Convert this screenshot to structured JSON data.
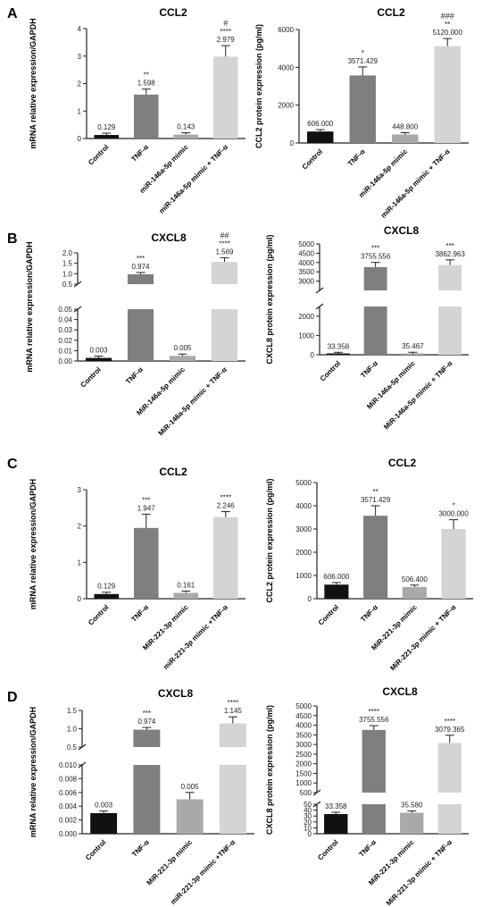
{
  "panel_letters": [
    "A",
    "B",
    "C",
    "D"
  ],
  "colors": {
    "control": "#111111",
    "tnf": "#7f7f7f",
    "mimic": "#a9a9a9",
    "combo": "#d4d4d4",
    "axis": "#222222"
  },
  "chart_data": [
    {
      "id": "A-left",
      "type": "bar",
      "title": "CCL2",
      "ylabel": "mRNA relative expression/GAPDH",
      "categories": [
        "Control",
        "TNF-α",
        "miR-146a-5p mimic",
        "miR-146a-5p mimic + TNF-α"
      ],
      "values": [
        0.129,
        1.598,
        0.143,
        2.979
      ],
      "errors": [
        0.05,
        0.2,
        0.04,
        0.4
      ],
      "value_labels": [
        "0.129",
        "1.598",
        "0.143",
        "2.979"
      ],
      "significance": [
        "",
        "**",
        "",
        "****"
      ],
      "extra_marks": [
        "",
        "",
        "",
        "#"
      ],
      "ylim": [
        0,
        4
      ],
      "yticks": [
        "0",
        "1",
        "2",
        "3",
        "4"
      ]
    },
    {
      "id": "A-right",
      "type": "bar",
      "title": "CCL2",
      "ylabel": "CCL2 protein expression (pg/ml)",
      "categories": [
        "Control",
        "TNF-α",
        "miR-146a-5p mimic",
        "miR-146a-5p mimic + TNF-α"
      ],
      "values": [
        606.0,
        3571.429,
        448.8,
        5120.0
      ],
      "errors": [
        100,
        450,
        80,
        400
      ],
      "value_labels": [
        "606.000",
        "3571.429",
        "448.800",
        "5120.000"
      ],
      "significance": [
        "",
        "*",
        "",
        "**"
      ],
      "extra_marks": [
        "",
        "",
        "",
        "###"
      ],
      "ylim": [
        0,
        6000
      ],
      "yticks": [
        "0",
        "2000",
        "4000",
        "6000"
      ]
    },
    {
      "id": "B-left",
      "type": "bar",
      "title": "CXCL8",
      "ylabel": "mRNA relative expression/GAPDH",
      "categories": [
        "Control",
        "TNF-α",
        "MiR-146a-5p mimic",
        "MiR-146a-5p mimic + TNF-α"
      ],
      "values": [
        0.003,
        0.974,
        0.005,
        1.569
      ],
      "errors": [
        0.001,
        0.07,
        0.0015,
        0.2
      ],
      "value_labels": [
        "0.003",
        "0.974",
        "0.005",
        "1.569"
      ],
      "significance": [
        "",
        "***",
        "",
        "****"
      ],
      "extra_marks": [
        "",
        "",
        "",
        "##"
      ],
      "axis_break": {
        "lower": [
          0,
          0.05
        ],
        "upper": [
          0.5,
          2.0
        ]
      },
      "yticks_lower": [
        "0.00",
        "0.01",
        "0.02",
        "0.03",
        "0.04",
        "0.05"
      ],
      "yticks_upper": [
        "0.5",
        "1.0",
        "1.5",
        "2.0"
      ]
    },
    {
      "id": "B-right",
      "type": "bar",
      "title": "CXCL8",
      "ylabel": "CXCL8 protein expression (pg/ml)",
      "categories": [
        "Control",
        "TNF-α",
        "MiR-146a-5p mimic",
        "MiR-146a-5p mimic + TNF-α"
      ],
      "values": [
        33.358,
        3755.556,
        35.467,
        3862.963
      ],
      "errors": [
        5,
        250,
        5,
        280
      ],
      "value_labels": [
        "33.358",
        "3755.556",
        "35.467",
        "3862.963"
      ],
      "significance": [
        "",
        "***",
        "",
        "***"
      ],
      "extra_marks": [
        "",
        "",
        "",
        ""
      ],
      "axis_break": {
        "lower": [
          0,
          2500
        ],
        "upper": [
          2500,
          5000
        ]
      },
      "yticks_lower": [
        "0",
        "1000",
        "2000"
      ],
      "yticks_upper": [
        "3000",
        "3500",
        "4000",
        "4500",
        "5000"
      ]
    },
    {
      "id": "C-left",
      "type": "bar",
      "title": "CCL2",
      "ylabel": "mRNA relative expression/GAPDH",
      "categories": [
        "Control",
        "TNF-α",
        "MiR-221-3p mimic",
        "miR-221-3p mimic +TNF-α"
      ],
      "values": [
        0.129,
        1.947,
        0.161,
        2.246
      ],
      "errors": [
        0.05,
        0.38,
        0.04,
        0.15
      ],
      "value_labels": [
        "0.129",
        "1.947",
        "0.161",
        "2.246"
      ],
      "significance": [
        "",
        "***",
        "",
        "****"
      ],
      "extra_marks": [
        "",
        "",
        "",
        ""
      ],
      "ylim": [
        0,
        3
      ],
      "yticks": [
        "0",
        "1",
        "2",
        "3"
      ]
    },
    {
      "id": "C-right",
      "type": "bar",
      "title": "CCL2",
      "ylabel": "CCL2 protein expression (pg/ml)",
      "categories": [
        "Control",
        "TNF-α",
        "MiR-221-3p mimic",
        "MiR-221-3p mimic + TNF-α"
      ],
      "values": [
        606.0,
        3571.429,
        506.4,
        3000.0
      ],
      "errors": [
        90,
        430,
        80,
        400
      ],
      "value_labels": [
        "606.000",
        "3571.429",
        "506.400",
        "3000.000"
      ],
      "significance": [
        "",
        "**",
        "",
        "*"
      ],
      "extra_marks": [
        "",
        "",
        "",
        ""
      ],
      "ylim": [
        0,
        5000
      ],
      "yticks": [
        "0",
        "1000",
        "2000",
        "3000",
        "4000",
        "5000"
      ]
    },
    {
      "id": "D-left",
      "type": "bar",
      "title": "CXCL8",
      "ylabel": "mRNA relative expression/GAPDH",
      "categories": [
        "Control",
        "TNF-α",
        "MiR-221-3p mimic",
        "miR-221-3p mimic +TNF-α"
      ],
      "values": [
        0.003,
        0.974,
        0.005,
        1.145
      ],
      "errors": [
        0.0003,
        0.06,
        0.001,
        0.18
      ],
      "value_labels": [
        "0.003",
        "0.974",
        "0.005",
        "1.145"
      ],
      "significance": [
        "",
        "***",
        "",
        "****"
      ],
      "extra_marks": [
        "",
        "",
        "",
        ""
      ],
      "axis_break": {
        "lower": [
          0,
          0.01
        ],
        "upper": [
          0.5,
          1.5
        ]
      },
      "yticks_lower": [
        "0.000",
        "0.002",
        "0.004",
        "0.006",
        "0.008",
        "0.010"
      ],
      "yticks_upper": [
        "0.5",
        "1.0",
        "1.5"
      ]
    },
    {
      "id": "D-right",
      "type": "bar",
      "title": "CXCL8",
      "ylabel": "CXCL8 protein expression (pg/ml)",
      "categories": [
        "Control",
        "TNF-α",
        "MiR-221-3p mimic",
        "MiR-221-3p mimic + TNF-α"
      ],
      "values": [
        33.358,
        3755.556,
        35.58,
        3079.365
      ],
      "errors": [
        1.5,
        220,
        1.5,
        400
      ],
      "value_labels": [
        "33.358",
        "3755.556",
        "35.580",
        "3079.365"
      ],
      "significance": [
        "",
        "****",
        "",
        "****"
      ],
      "extra_marks": [
        "",
        "",
        "",
        ""
      ],
      "axis_break": {
        "lower": [
          0,
          50
        ],
        "upper": [
          500,
          5000
        ]
      },
      "yticks_lower": [
        "0",
        "10",
        "20",
        "30",
        "40",
        "50"
      ],
      "yticks_upper": [
        "500",
        "1000",
        "1500",
        "2000",
        "2500",
        "3000",
        "3500",
        "4000",
        "4500",
        "5000"
      ]
    }
  ]
}
